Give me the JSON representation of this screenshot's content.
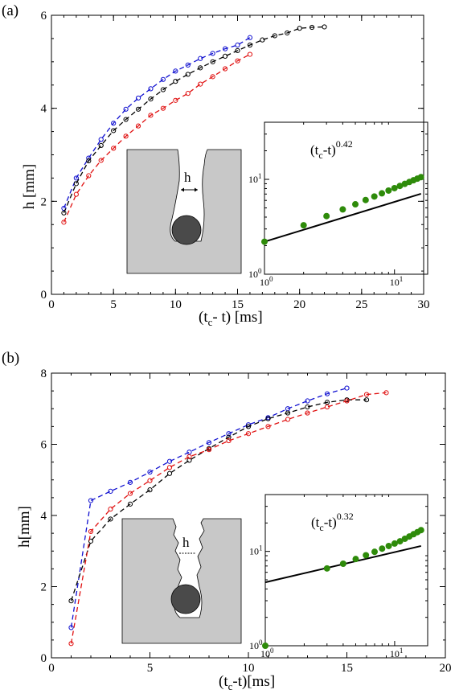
{
  "chart_data": [
    {
      "id": "a",
      "panel_label": "(a)",
      "type": "line",
      "xlabel": "(t_c- t)  [ms]",
      "ylabel": "h [mm]",
      "xlim": [
        0,
        30
      ],
      "ylim": [
        0,
        6
      ],
      "xticks": [
        0,
        5,
        10,
        15,
        20,
        25,
        30
      ],
      "yticks": [
        0,
        2,
        4,
        6
      ],
      "minor_x": 1,
      "minor_y": 0.5,
      "series": [
        {
          "color": "#1010d0",
          "x": [
            1,
            2,
            3,
            4,
            5,
            6,
            7,
            8,
            9,
            10,
            11,
            12,
            13,
            14,
            15,
            16
          ],
          "y": [
            1.85,
            2.5,
            2.93,
            3.33,
            3.68,
            3.98,
            4.22,
            4.42,
            4.62,
            4.8,
            4.93,
            5.07,
            5.18,
            5.28,
            5.36,
            5.52
          ]
        },
        {
          "color": "#000000",
          "x": [
            1,
            2,
            3,
            4,
            5,
            6,
            7,
            8,
            9,
            10,
            11,
            12,
            13,
            14,
            15,
            16,
            17,
            18,
            19,
            20,
            21,
            22
          ],
          "y": [
            1.75,
            2.38,
            2.87,
            3.2,
            3.52,
            3.76,
            3.98,
            4.2,
            4.4,
            4.58,
            4.73,
            4.87,
            5.0,
            5.12,
            5.24,
            5.36,
            5.47,
            5.56,
            5.62,
            5.72,
            5.74,
            5.75
          ]
        },
        {
          "color": "#e01010",
          "x": [
            1,
            2,
            3,
            4,
            5,
            6,
            7,
            8,
            9,
            10,
            11,
            12,
            13,
            14,
            15,
            16
          ],
          "y": [
            1.55,
            2.15,
            2.55,
            2.88,
            3.14,
            3.4,
            3.62,
            3.85,
            4.0,
            4.17,
            4.32,
            4.52,
            4.68,
            4.85,
            5.02,
            5.16
          ]
        }
      ],
      "inset": {
        "annotation_base": "(t",
        "annotation_sub": "c",
        "annotation_mid": "-t)",
        "annotation_exp": "0.42",
        "scale": "loglog",
        "xlim": [
          1,
          18
        ],
        "ylim": [
          1,
          40
        ],
        "xtick_labels": [
          "10",
          "10"
        ],
        "xtick_exps": [
          "0",
          "1"
        ],
        "ytick_labels": [
          "10",
          "10"
        ],
        "ytick_exps": [
          "0",
          "1"
        ],
        "points_x": [
          1,
          2,
          3,
          4,
          5,
          6,
          7,
          8,
          9,
          10,
          11,
          12,
          13,
          14,
          15,
          16
        ],
        "points_y": [
          2.2,
          3.28,
          4.1,
          4.82,
          5.46,
          6.06,
          6.6,
          7.12,
          7.62,
          8.08,
          8.52,
          8.96,
          9.38,
          9.78,
          10.18,
          10.56
        ],
        "fit_exponent": 0.42,
        "fit_prefactor": 2.2,
        "point_color": "#2e8b0a"
      },
      "sketch_label": "h"
    },
    {
      "id": "b",
      "panel_label": "(b)",
      "type": "line",
      "xlabel": "(t_c-t)[ms]",
      "ylabel": "h[mm]",
      "xlim": [
        0,
        20
      ],
      "ylim": [
        0,
        8
      ],
      "xticks": [
        0,
        5,
        10,
        15,
        20
      ],
      "yticks": [
        0,
        2,
        4,
        6,
        8
      ],
      "minor_x": 1,
      "minor_y": 0.5,
      "series": [
        {
          "color": "#1010d0",
          "x": [
            1,
            2,
            3,
            4,
            5,
            6,
            7,
            8,
            9,
            10,
            11,
            12,
            13,
            14,
            15
          ],
          "y": [
            0.85,
            4.42,
            4.68,
            4.93,
            5.22,
            5.52,
            5.78,
            6.05,
            6.3,
            6.55,
            6.75,
            7.0,
            7.22,
            7.42,
            7.58
          ]
        },
        {
          "color": "#000000",
          "x": [
            1,
            2,
            3,
            4,
            5,
            6,
            7,
            8,
            9,
            10,
            11,
            12,
            13,
            14,
            15,
            16
          ],
          "y": [
            1.6,
            3.28,
            3.9,
            4.32,
            4.72,
            5.18,
            5.55,
            5.88,
            6.2,
            6.5,
            6.72,
            6.88,
            7.05,
            7.18,
            7.25,
            7.25
          ]
        },
        {
          "color": "#e01010",
          "x": [
            1,
            2,
            3,
            4,
            5,
            6,
            7,
            8,
            9,
            10,
            11,
            12,
            13,
            14,
            15,
            16,
            17
          ],
          "y": [
            0.4,
            3.55,
            4.18,
            4.62,
            4.98,
            5.35,
            5.65,
            5.85,
            6.1,
            6.3,
            6.5,
            6.7,
            6.88,
            7.05,
            7.22,
            7.4,
            7.45
          ]
        }
      ],
      "inset": {
        "annotation_base": "(t",
        "annotation_sub": "c",
        "annotation_mid": "-t)",
        "annotation_exp": "0.32",
        "scale": "loglog",
        "xlim": [
          1,
          18
        ],
        "ylim": [
          1,
          40
        ],
        "xtick_labels": [
          "10",
          "10"
        ],
        "xtick_exps": [
          "0",
          "1"
        ],
        "ytick_labels": [
          "10",
          "10"
        ],
        "ytick_exps": [
          "0",
          "1"
        ],
        "points_x": [
          1,
          3,
          4,
          5,
          6,
          7,
          8,
          9,
          10,
          11,
          12,
          13,
          14,
          15,
          16
        ],
        "points_y": [
          1.0,
          6.6,
          7.4,
          8.3,
          9.1,
          9.9,
          10.7,
          11.4,
          12.1,
          12.8,
          13.6,
          14.4,
          15.2,
          16.0,
          16.8
        ],
        "fit_exponent": 0.32,
        "fit_prefactor": 4.7,
        "point_color": "#2e8b0a"
      },
      "sketch_label": "h"
    }
  ]
}
